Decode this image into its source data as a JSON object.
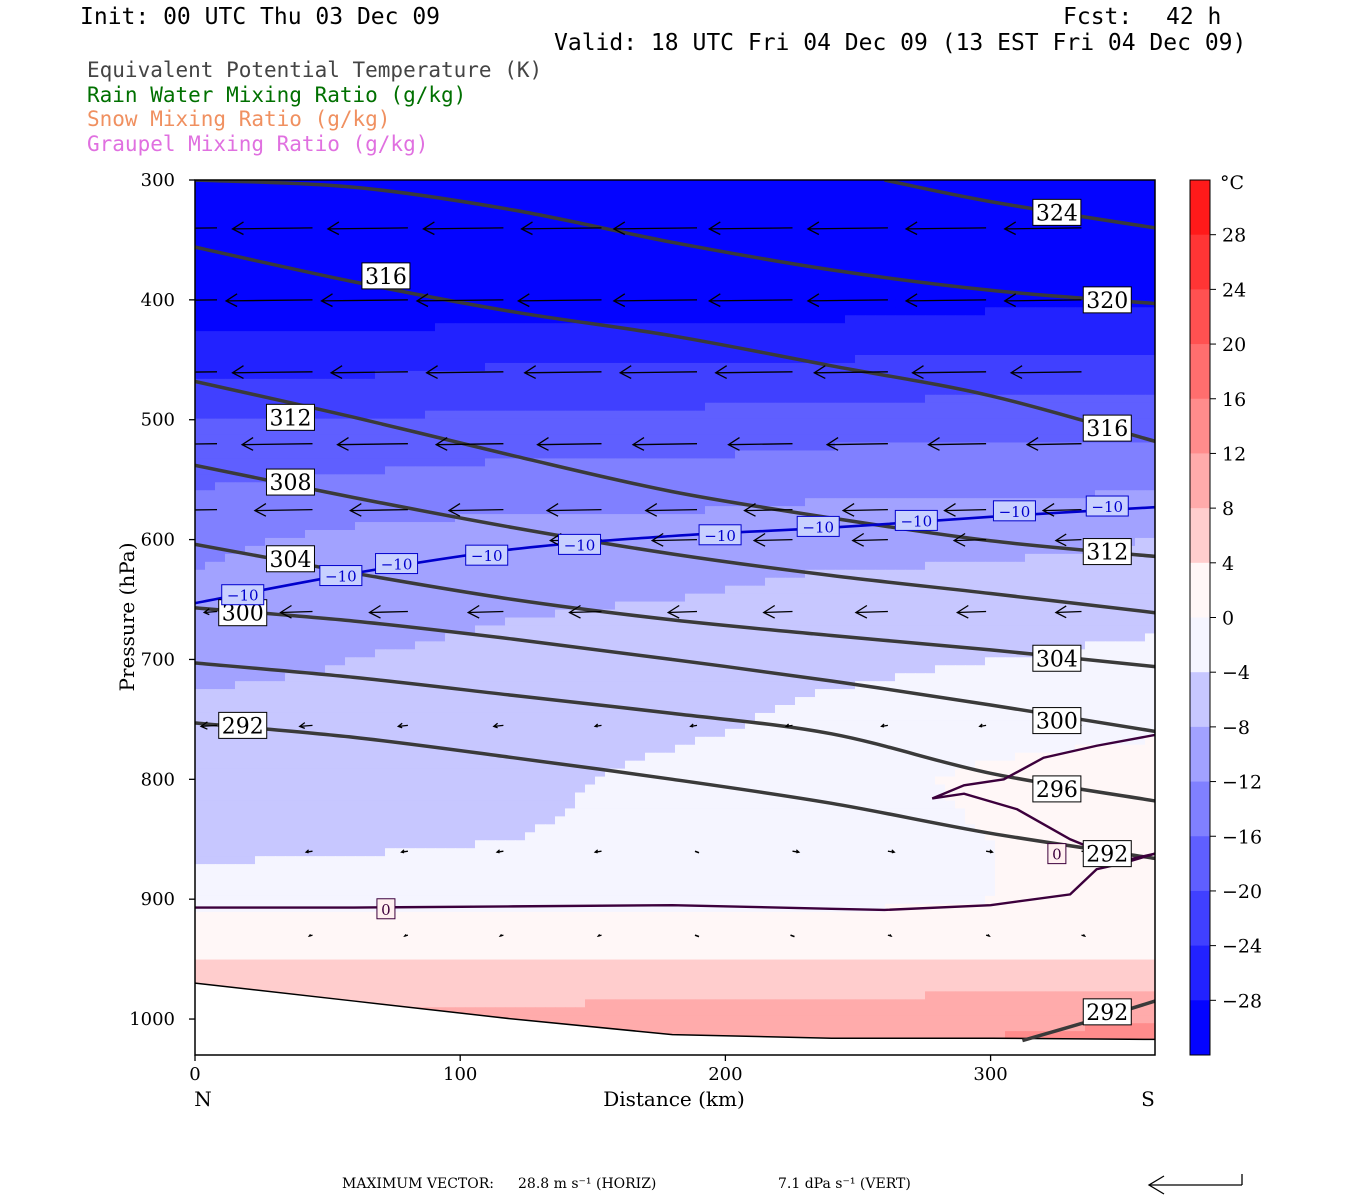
{
  "header": {
    "init": "Init: 00 UTC Thu 03 Dec 09",
    "fcst_label": "Fcst:",
    "fcst_value": "42 h",
    "valid": "Valid: 18 UTC Fri 04 Dec 09 (13 EST Fri 04 Dec 09)"
  },
  "legend": [
    {
      "label": "Equivalent Potential Temperature (K)",
      "color": "#444444"
    },
    {
      "label": "Rain Water Mixing Ratio (g/kg)",
      "color": "#007000"
    },
    {
      "label": "Snow Mixing Ratio (g/kg)",
      "color": "#f09060"
    },
    {
      "label": "Graupel Mixing Ratio (g/kg)",
      "color": "#e070e0"
    }
  ],
  "footer": {
    "max_vector_label": "MAXIMUM VECTOR:",
    "horiz": "28.8 m s⁻¹ (HORIZ)",
    "vert": "7.1 dPa s⁻¹ (VERT)"
  },
  "chart_data": {
    "type": "contour",
    "xlabel": "Distance (km)",
    "ylabel": "Pressure (hPa)",
    "x_range": [
      0,
      362
    ],
    "y_range": [
      1030,
      300
    ],
    "x_ticks": [
      0,
      100,
      200,
      300
    ],
    "y_ticks": [
      300,
      400,
      500,
      600,
      700,
      800,
      900,
      1000
    ],
    "x_end_labels": {
      "left": "N",
      "right": "S"
    },
    "colorbar": {
      "unit": "°C",
      "ticks": [
        28,
        24,
        20,
        16,
        12,
        8,
        4,
        0,
        -4,
        -8,
        -12,
        -16,
        -20,
        -24,
        -28
      ],
      "tick_labels": [
        "28",
        "24",
        "20",
        "16",
        "12",
        "8",
        "4",
        "0",
        "−4",
        "−8",
        "−12",
        "−16",
        "−20",
        "−24",
        "−28"
      ],
      "range": [
        -32,
        32
      ],
      "cold_color": "#0000ff",
      "warm_color": "#ff0000",
      "neutral_color": "#ffffff"
    },
    "temperature_field": {
      "x": [
        0,
        60,
        120,
        180,
        240,
        300,
        362
      ],
      "levels": [
        {
          "p": 300,
          "t": [
            -40,
            -40,
            -40,
            -40,
            -40,
            -40,
            -40
          ]
        },
        {
          "p": 400,
          "t": [
            -31,
            -31,
            -30,
            -30,
            -30,
            -29,
            -29
          ]
        },
        {
          "p": 500,
          "t": [
            -20,
            -20,
            -19,
            -19,
            -18,
            -18,
            -18
          ]
        },
        {
          "p": 600,
          "t": [
            -13,
            -11,
            -10,
            -10,
            -9,
            -9,
            -8
          ]
        },
        {
          "p": 700,
          "t": [
            -9,
            -8,
            -7,
            -6,
            -5,
            -4,
            -3
          ]
        },
        {
          "p": 750,
          "t": [
            -7,
            -7,
            -6,
            -5,
            -3,
            -2,
            -1
          ]
        },
        {
          "p": 800,
          "t": [
            -8,
            -6,
            -5,
            -3,
            -2,
            1,
            2
          ]
        },
        {
          "p": 850,
          "t": [
            -6,
            -5,
            -4,
            -3,
            -2,
            0,
            2
          ]
        },
        {
          "p": 900,
          "t": [
            -1,
            -1,
            -1,
            -1,
            -1,
            0,
            1
          ]
        },
        {
          "p": 950,
          "t": [
            4,
            4,
            4,
            4,
            4,
            4,
            4
          ]
        },
        {
          "p": 1000,
          "t": [
            9,
            9,
            9,
            10,
            10,
            11,
            12
          ]
        },
        {
          "p": 1030,
          "t": [
            11,
            11,
            11,
            12,
            12,
            13,
            14
          ]
        }
      ]
    },
    "surface_pressure": {
      "x": [
        0,
        60,
        120,
        180,
        240,
        300,
        362
      ],
      "p": [
        970,
        985,
        1000,
        1013,
        1016,
        1016,
        1017
      ]
    },
    "theta_e_contours": [
      {
        "value": 292,
        "x": [
          0,
          60,
          120,
          180,
          240,
          300,
          362
        ],
        "p": [
          753,
          765,
          782,
          800,
          820,
          845,
          866
        ]
      },
      {
        "value": 296,
        "x": [
          0,
          60,
          120,
          180,
          240,
          300,
          362
        ],
        "p": [
          703,
          715,
          730,
          745,
          762,
          795,
          818
        ]
      },
      {
        "value": 300,
        "x": [
          0,
          60,
          120,
          180,
          240,
          300,
          362
        ],
        "p": [
          657,
          668,
          683,
          700,
          718,
          738,
          760
        ]
      },
      {
        "value": 304,
        "x": [
          0,
          60,
          120,
          180,
          240,
          300,
          362
        ],
        "p": [
          604,
          628,
          650,
          667,
          680,
          692,
          706
        ]
      },
      {
        "value": 308,
        "x": [
          0,
          60,
          120,
          180,
          240,
          300,
          362
        ],
        "p": [
          538,
          565,
          590,
          612,
          630,
          645,
          661
        ]
      },
      {
        "value": 312,
        "x": [
          0,
          60,
          120,
          180,
          240,
          300,
          362
        ],
        "p": [
          468,
          498,
          530,
          560,
          582,
          601,
          614
        ]
      },
      {
        "value": 316,
        "x": [
          0,
          60,
          120,
          180,
          240,
          300,
          362
        ],
        "p": [
          356,
          385,
          410,
          430,
          455,
          480,
          518
        ]
      },
      {
        "value": 320,
        "x": [
          0,
          60,
          120,
          180,
          240,
          300,
          362
        ],
        "p": [
          300,
          306,
          325,
          352,
          375,
          392,
          403
        ]
      },
      {
        "value": 324,
        "x": [
          260,
          300,
          362
        ],
        "p": [
          300,
          318,
          340
        ]
      },
      {
        "value": 292,
        "x": [
          312,
          340,
          362
        ],
        "p": [
          1018,
          1000,
          985
        ]
      }
    ],
    "theta_e_labels": [
      {
        "text": "324",
        "x": 325,
        "p": 327
      },
      {
        "text": "316",
        "x": 72,
        "p": 380
      },
      {
        "text": "320",
        "x": 344,
        "p": 400
      },
      {
        "text": "312",
        "x": 36,
        "p": 498
      },
      {
        "text": "316",
        "x": 344,
        "p": 507
      },
      {
        "text": "308",
        "x": 36,
        "p": 552
      },
      {
        "text": "304",
        "x": 36,
        "p": 616
      },
      {
        "text": "312",
        "x": 344,
        "p": 610
      },
      {
        "text": "300",
        "x": 18,
        "p": 661
      },
      {
        "text": "304",
        "x": 325,
        "p": 699
      },
      {
        "text": "300",
        "x": 325,
        "p": 751
      },
      {
        "text": "292",
        "x": 18,
        "p": 755
      },
      {
        "text": "296",
        "x": 325,
        "p": 808
      },
      {
        "text": "292",
        "x": 344,
        "p": 862
      },
      {
        "text": "292",
        "x": 344,
        "p": 994
      }
    ],
    "isotherm_minus10": {
      "value": -10,
      "x": [
        0,
        60,
        120,
        180,
        240,
        300,
        362
      ],
      "p": [
        653,
        628,
        608,
        597,
        590,
        581,
        573
      ]
    },
    "isotherm_minus10_labels": [
      {
        "text": "−10",
        "x": 18,
        "p": 646
      },
      {
        "text": "−10",
        "x": 55,
        "p": 630
      },
      {
        "text": "−10",
        "x": 76,
        "p": 620
      },
      {
        "text": "−10",
        "x": 110,
        "p": 613
      },
      {
        "text": "−10",
        "x": 145,
        "p": 604
      },
      {
        "text": "−10",
        "x": 198,
        "p": 596
      },
      {
        "text": "−10",
        "x": 235,
        "p": 589
      },
      {
        "text": "−10",
        "x": 272,
        "p": 584
      },
      {
        "text": "−10",
        "x": 309,
        "p": 576
      },
      {
        "text": "−10",
        "x": 344,
        "p": 572
      }
    ],
    "isotherm_zero": {
      "value": 0,
      "x": [
        0,
        60,
        120,
        180,
        240,
        260,
        300,
        330,
        340,
        350,
        362
      ],
      "p": [
        907,
        907,
        906,
        905,
        908,
        909,
        905,
        896,
        875,
        870,
        862
      ]
    },
    "isotherm_zero_warm_pocket": {
      "x": [
        362,
        340,
        320,
        305,
        290,
        278,
        290,
        310,
        330,
        350,
        362
      ],
      "p": [
        763,
        772,
        782,
        800,
        805,
        816,
        812,
        825,
        850,
        868,
        862
      ]
    },
    "isotherm_zero_labels": [
      {
        "text": "0",
        "x": 72,
        "p": 908
      },
      {
        "text": "0",
        "x": 325,
        "p": 862
      }
    ],
    "wind_vectors": [
      {
        "p": 340,
        "x": [
          0,
          36,
          72,
          108,
          145,
          181,
          217,
          253,
          290,
          326
        ],
        "u": [
          -28,
          -25,
          -25,
          -25,
          -25,
          -26,
          -26,
          -25,
          -25,
          -24
        ],
        "w": [
          0,
          0,
          0,
          0,
          0,
          0,
          0,
          0,
          0,
          0
        ]
      },
      {
        "p": 400,
        "x": [
          0,
          36,
          72,
          108,
          145,
          181,
          217,
          253,
          290,
          326
        ],
        "u": [
          -28,
          -27,
          -27,
          -27,
          -26,
          -26,
          -26,
          -25,
          -25,
          -24
        ],
        "w": [
          0,
          0,
          0,
          0,
          0,
          0,
          0,
          0,
          0,
          0
        ]
      },
      {
        "p": 460,
        "x": [
          0,
          36,
          72,
          108,
          145,
          181,
          217,
          253,
          290,
          326
        ],
        "u": [
          -26,
          -25,
          -24,
          -24,
          -24,
          -24,
          -24,
          -23,
          -23,
          -22
        ],
        "w": [
          0,
          0,
          0,
          0,
          0,
          0,
          0,
          0,
          0,
          0
        ]
      },
      {
        "p": 520,
        "x": [
          0,
          36,
          72,
          108,
          145,
          181,
          217,
          253,
          290,
          326
        ],
        "u": [
          -22,
          -22,
          -22,
          -21,
          -20,
          -20,
          -20,
          -19,
          -18,
          -17
        ],
        "w": [
          0,
          0,
          0,
          0,
          0,
          0,
          0,
          0,
          0,
          0
        ]
      },
      {
        "p": 575,
        "x": [
          0,
          36,
          72,
          108,
          145,
          181,
          217,
          253,
          290,
          326
        ],
        "u": [
          -20,
          -18,
          -18,
          -17,
          -17,
          -16,
          -15,
          -14,
          -13,
          -12
        ],
        "w": [
          0,
          0,
          0,
          0,
          0,
          0,
          0,
          0,
          0,
          0
        ]
      },
      {
        "p": 600,
        "x": [
          145,
          181,
          217,
          253,
          290,
          326
        ],
        "u": [
          -16,
          -14,
          -12,
          -11,
          -10,
          -8
        ],
        "w": [
          0,
          0,
          0,
          0,
          0,
          0
        ]
      },
      {
        "p": 660,
        "x": [
          0,
          36,
          72,
          108,
          145,
          181,
          217,
          253,
          290,
          326
        ],
        "u": [
          -4,
          -10,
          -12,
          -11,
          -10,
          -9,
          -9,
          -10,
          -9,
          -8
        ],
        "w": [
          0,
          0,
          0,
          0,
          0,
          0,
          0,
          0,
          0,
          0
        ]
      },
      {
        "p": 755,
        "x": [
          0,
          36,
          72,
          108,
          145,
          181,
          217,
          253,
          290,
          326
        ],
        "u": [
          -5,
          -4,
          -3,
          -3,
          -2,
          -2,
          -2,
          -2,
          -2,
          -2
        ],
        "w": [
          0,
          0,
          0,
          0,
          0,
          0,
          0,
          0,
          0,
          0
        ]
      },
      {
        "p": 860,
        "x": [
          36,
          72,
          108,
          145,
          181,
          217,
          253,
          290,
          326
        ],
        "u": [
          -2,
          -2,
          -2,
          -2,
          0,
          2,
          2,
          2,
          2
        ],
        "w": [
          0,
          0,
          0,
          0,
          0,
          0,
          0,
          0,
          0
        ]
      },
      {
        "p": 930,
        "x": [
          36,
          72,
          108,
          145,
          181,
          217,
          253,
          290,
          326
        ],
        "u": [
          -1,
          -1,
          -1,
          -1,
          0,
          0,
          1,
          1,
          1
        ],
        "w": [
          0,
          0,
          0,
          0,
          0,
          0,
          0,
          0,
          0
        ]
      }
    ]
  }
}
